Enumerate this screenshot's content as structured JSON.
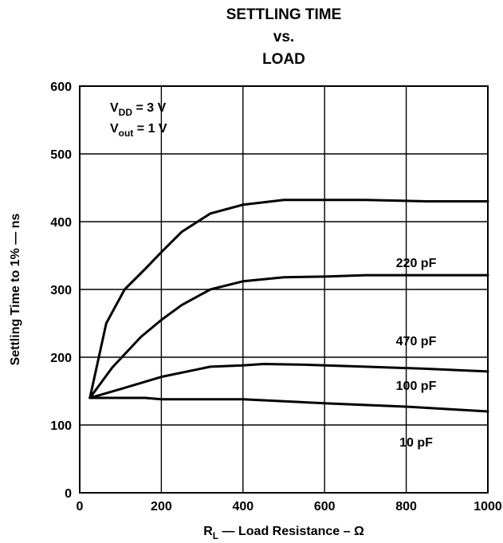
{
  "title": {
    "line1": "SETTLING TIME",
    "line2": "vs.",
    "line3": "LOAD"
  },
  "annotation": {
    "line1": {
      "main": "V",
      "sub": "DD",
      "rest": " = 3 V"
    },
    "line2": {
      "main": "V",
      "sub": "out",
      "rest": " = 1 V"
    }
  },
  "chart_data": {
    "type": "line",
    "title": "SETTLING TIME vs. LOAD",
    "xlabel": {
      "main": "R",
      "sub": "L",
      "rest": " — Load Resistance – Ω"
    },
    "ylabel": "Settling Time to 1% — ns",
    "xlim": [
      0,
      1000
    ],
    "ylim": [
      0,
      600
    ],
    "x_ticks": [
      0,
      200,
      400,
      600,
      800,
      1000
    ],
    "y_ticks": [
      0,
      100,
      200,
      300,
      400,
      500,
      600
    ],
    "grid": true,
    "series": [
      {
        "name": "470 pF",
        "x": [
          25,
          65,
          110,
          160,
          200,
          250,
          320,
          400,
          500,
          700,
          850,
          1000
        ],
        "y": [
          140,
          250,
          300,
          330,
          355,
          385,
          412,
          425,
          432,
          432,
          430,
          430
        ]
      },
      {
        "name": "220 pF",
        "x": [
          25,
          80,
          150,
          200,
          250,
          320,
          400,
          500,
          600,
          700,
          1000
        ],
        "y": [
          140,
          185,
          230,
          255,
          277,
          300,
          312,
          318,
          319,
          321,
          321
        ]
      },
      {
        "name": "100 pF",
        "x": [
          25,
          100,
          200,
          320,
          400,
          450,
          550,
          700,
          850,
          1000
        ],
        "y": [
          140,
          153,
          171,
          186,
          188,
          190,
          189,
          186,
          183,
          179
        ]
      },
      {
        "name": "10 pF",
        "x": [
          25,
          160,
          200,
          400,
          600,
          800,
          1000
        ],
        "y": [
          140,
          140,
          138,
          138,
          132,
          127,
          120
        ]
      }
    ]
  }
}
